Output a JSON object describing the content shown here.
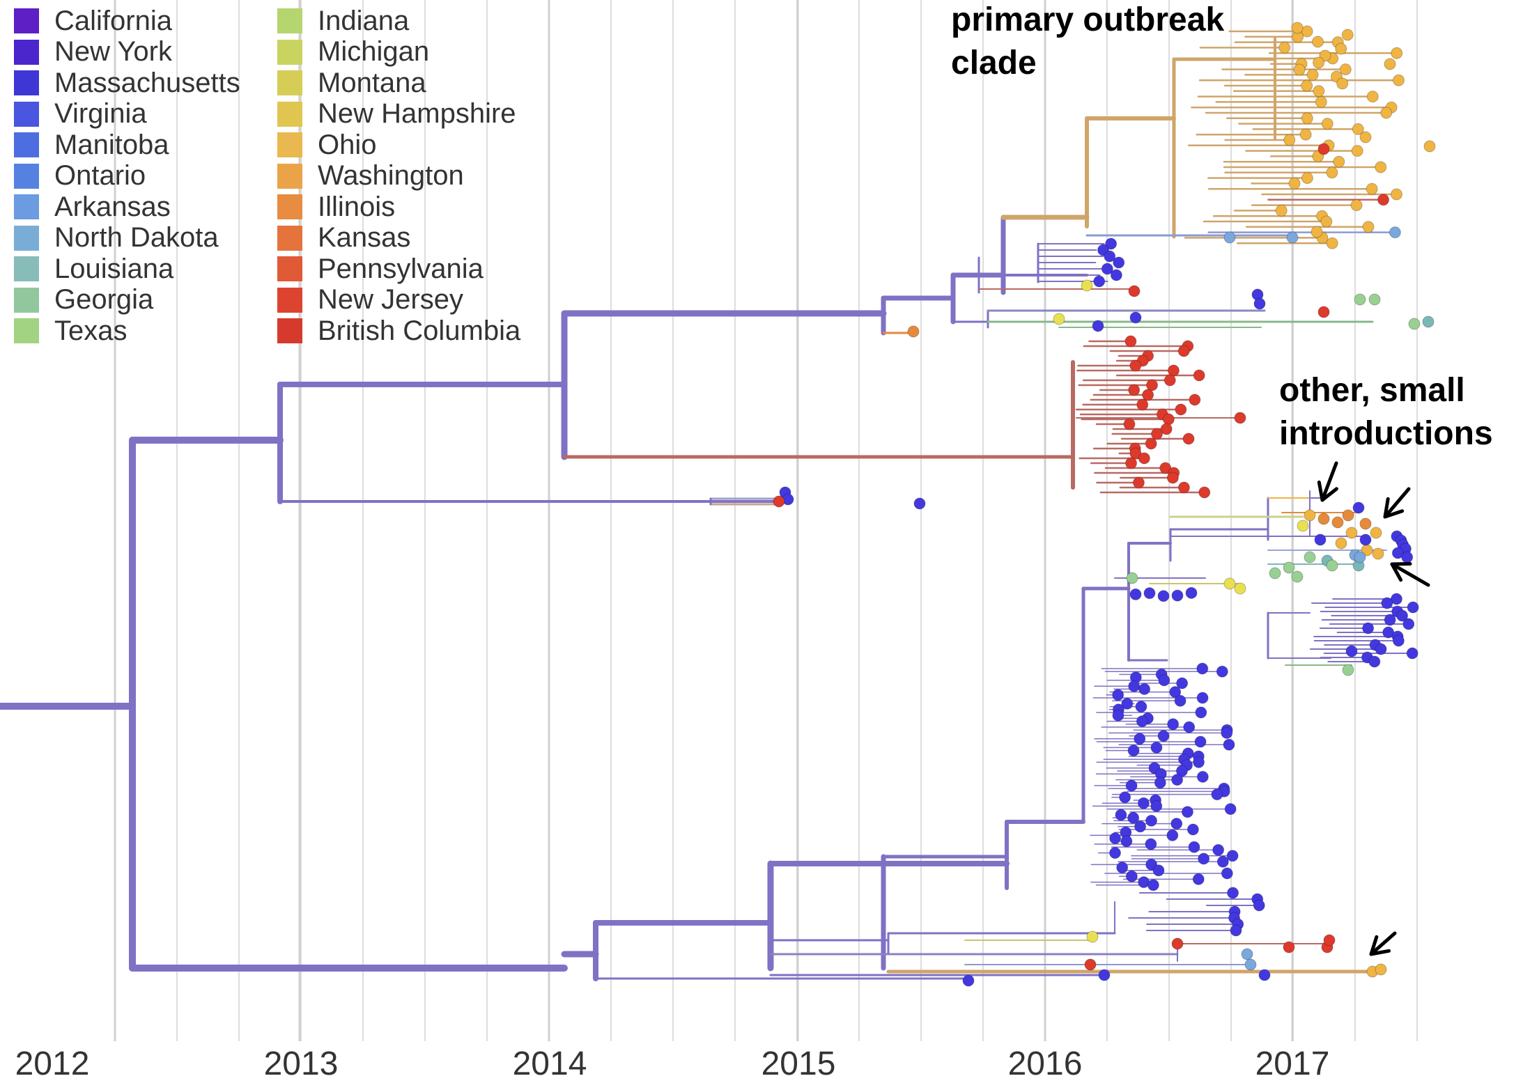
{
  "legend": {
    "col1": [
      {
        "label": "California",
        "color": "#5e1fc4"
      },
      {
        "label": "New York",
        "color": "#4a26cc"
      },
      {
        "label": "Massachusetts",
        "color": "#3f36d6"
      },
      {
        "label": "Virginia",
        "color": "#4a55e0"
      },
      {
        "label": "Manitoba",
        "color": "#4d6ee0"
      },
      {
        "label": "Ontario",
        "color": "#5582e0"
      },
      {
        "label": "Arkansas",
        "color": "#6b9be0"
      },
      {
        "label": "North Dakota",
        "color": "#7aadd6"
      },
      {
        "label": "Louisiana",
        "color": "#88bcb8"
      },
      {
        "label": "Georgia",
        "color": "#92c79e"
      },
      {
        "label": "Texas",
        "color": "#a2d383"
      }
    ],
    "col2": [
      {
        "label": "Indiana",
        "color": "#b5d56e"
      },
      {
        "label": "Michigan",
        "color": "#c9d460"
      },
      {
        "label": "Montana",
        "color": "#d6cd57"
      },
      {
        "label": "New Hampshire",
        "color": "#e0c650"
      },
      {
        "label": "Ohio",
        "color": "#e9b84e"
      },
      {
        "label": "Washington",
        "color": "#eba34a"
      },
      {
        "label": "Illinois",
        "color": "#e88c42"
      },
      {
        "label": "Kansas",
        "color": "#e5733c"
      },
      {
        "label": "Pennsylvania",
        "color": "#df5a35"
      },
      {
        "label": "New Jersey",
        "color": "#dc4430"
      },
      {
        "label": "British Columbia",
        "color": "#d63a2c"
      }
    ]
  },
  "annotations": {
    "primary_line1": "primary outbreak",
    "primary_line2": "clade",
    "other_line1": "other, small",
    "other_line2": "introductions"
  },
  "axis": {
    "years": [
      "2012",
      "2013",
      "2014",
      "2015",
      "2016",
      "2017"
    ]
  },
  "colors": {
    "trunk": "#7f72c4",
    "red_clade": "#b86a63",
    "ohio_clade": "#cfa56a",
    "tip_blue": "#4338e0",
    "tip_red": "#dd3a2c",
    "tip_orange": "#f0b443",
    "tip_darkorange": "#e68a3a",
    "tip_yellow": "#e8e050",
    "tip_green": "#98d093",
    "tip_teal": "#7ab8b8",
    "tip_lightblue": "#79a8dc",
    "grid": "#dddddd"
  }
}
